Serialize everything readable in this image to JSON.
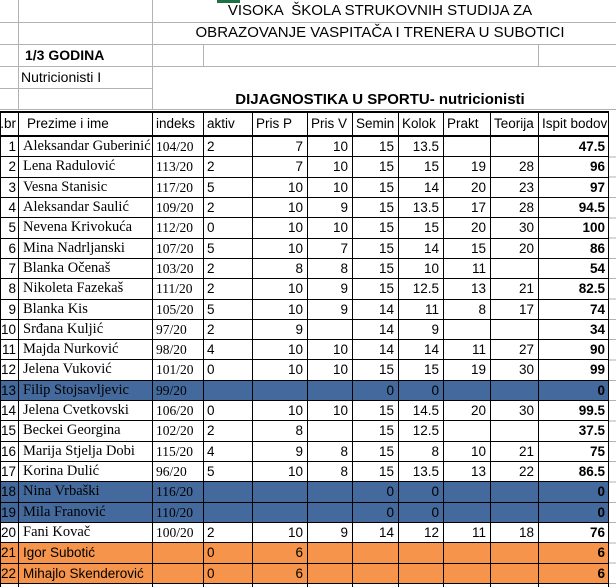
{
  "header": {
    "school_line1": "VISOKA  ŠKOLA STRUKOVNIH STUDIJA ZA",
    "school_line2": "OBRAZOVANJE VASPITAČA I TRENERA U SUBOTICI",
    "year_label": "1/3 GODINA",
    "group_label": "Nutricionisti I",
    "course_title": "DIJAGNOSTIKA U SPORTU- nutricionisti"
  },
  "table": {
    "columns": [
      "r.br",
      "Prezime i ime",
      "indeks",
      "aktiv",
      "Pris P",
      "Pris V",
      "Semin",
      "Kolok",
      "Prakt",
      "Teorija",
      "Ispit bodovi"
    ],
    "rows": [
      {
        "rbr": "1",
        "name": "Aleksandar Guberinić",
        "indeks": "104/20",
        "aktiv": "2",
        "pris_p": "7",
        "pris_v": "10",
        "semin": "15",
        "kolok": "13.5",
        "prakt": "",
        "teorija": "",
        "ispit": "47.5",
        "highlight": "none"
      },
      {
        "rbr": "2",
        "name": "Lena Radulović",
        "indeks": "113/20",
        "aktiv": "2",
        "pris_p": "7",
        "pris_v": "10",
        "semin": "15",
        "kolok": "15",
        "prakt": "19",
        "teorija": "28",
        "ispit": "96",
        "highlight": "none"
      },
      {
        "rbr": "3",
        "name": "Vesna Stanisic",
        "indeks": "117/20",
        "aktiv": "5",
        "pris_p": "10",
        "pris_v": "10",
        "semin": "15",
        "kolok": "14",
        "prakt": "20",
        "teorija": "23",
        "ispit": "97",
        "highlight": "none"
      },
      {
        "rbr": "4",
        "name": "Aleksandar Saulić",
        "indeks": "109/20",
        "aktiv": "2",
        "pris_p": "10",
        "pris_v": "9",
        "semin": "15",
        "kolok": "13.5",
        "prakt": "17",
        "teorija": "28",
        "ispit": "94.5",
        "highlight": "none"
      },
      {
        "rbr": "5",
        "name": "Nevena Krivokuća",
        "indeks": "112/20",
        "aktiv": "0",
        "pris_p": "10",
        "pris_v": "10",
        "semin": "15",
        "kolok": "15",
        "prakt": "20",
        "teorija": "30",
        "ispit": "100",
        "highlight": "none"
      },
      {
        "rbr": "6",
        "name": "Mina Nadrljanski",
        "indeks": "107/20",
        "aktiv": "5",
        "pris_p": "10",
        "pris_v": "7",
        "semin": "15",
        "kolok": "14",
        "prakt": "15",
        "teorija": "20",
        "ispit": "86",
        "highlight": "none"
      },
      {
        "rbr": "7",
        "name": "Blanka Očenaš",
        "indeks": "103/20",
        "aktiv": "2",
        "pris_p": "8",
        "pris_v": "8",
        "semin": "15",
        "kolok": "10",
        "prakt": "11",
        "teorija": "",
        "ispit": "54",
        "highlight": "none"
      },
      {
        "rbr": "8",
        "name": "Nikoleta Fazekaš",
        "indeks": "111/20",
        "aktiv": "2",
        "pris_p": "10",
        "pris_v": "9",
        "semin": "15",
        "kolok": "12.5",
        "prakt": "13",
        "teorija": "21",
        "ispit": "82.5",
        "highlight": "none"
      },
      {
        "rbr": "9",
        "name": "Blanka Kis",
        "indeks": "105/20",
        "aktiv": "5",
        "pris_p": "10",
        "pris_v": "9",
        "semin": "14",
        "kolok": "11",
        "prakt": "8",
        "teorija": "17",
        "ispit": "74",
        "highlight": "none"
      },
      {
        "rbr": "10",
        "name": "Srđana Kuljić",
        "indeks": "97/20",
        "aktiv": "2",
        "pris_p": "9",
        "pris_v": "",
        "semin": "14",
        "kolok": "9",
        "prakt": "",
        "teorija": "",
        "ispit": "34",
        "highlight": "none"
      },
      {
        "rbr": "11",
        "name": "Majda Nurković",
        "indeks": "98/20",
        "aktiv": "4",
        "pris_p": "10",
        "pris_v": "10",
        "semin": "14",
        "kolok": "14",
        "prakt": "11",
        "teorija": "27",
        "ispit": "90",
        "highlight": "none"
      },
      {
        "rbr": "12",
        "name": "Jelena Vuković",
        "indeks": "101/20",
        "aktiv": "0",
        "pris_p": "10",
        "pris_v": "10",
        "semin": "15",
        "kolok": "15",
        "prakt": "19",
        "teorija": "30",
        "ispit": "99",
        "highlight": "none"
      },
      {
        "rbr": "13",
        "name": "Filip Stojsavljevic",
        "indeks": "99/20",
        "aktiv": "",
        "pris_p": "",
        "pris_v": "",
        "semin": "0",
        "kolok": "0",
        "prakt": "",
        "teorija": "",
        "ispit": "0",
        "highlight": "blue"
      },
      {
        "rbr": "14",
        "name": "Jelena Cvetkovski",
        "indeks": "106/20",
        "aktiv": "0",
        "pris_p": "10",
        "pris_v": "10",
        "semin": "15",
        "kolok": "14.5",
        "prakt": "20",
        "teorija": "30",
        "ispit": "99.5",
        "highlight": "none"
      },
      {
        "rbr": "15",
        "name": "Beckei Georgina",
        "indeks": "102/20",
        "aktiv": "2",
        "pris_p": "8",
        "pris_v": "",
        "semin": "15",
        "kolok": "12.5",
        "prakt": "",
        "teorija": "",
        "ispit": "37.5",
        "highlight": "none"
      },
      {
        "rbr": "16",
        "name": "Marija Stjelja Dobi",
        "indeks": "115/20",
        "aktiv": "4",
        "pris_p": "9",
        "pris_v": "8",
        "semin": "15",
        "kolok": "8",
        "prakt": "10",
        "teorija": "21",
        "ispit": "75",
        "highlight": "none"
      },
      {
        "rbr": "17",
        "name": "Korina Dulić",
        "indeks": "96/20",
        "aktiv": "5",
        "pris_p": "10",
        "pris_v": "8",
        "semin": "15",
        "kolok": "13.5",
        "prakt": "13",
        "teorija": "22",
        "ispit": "86.5",
        "highlight": "none"
      },
      {
        "rbr": "18",
        "name": "Nina Vrbaški",
        "indeks": "116/20",
        "aktiv": "",
        "pris_p": "",
        "pris_v": "",
        "semin": "0",
        "kolok": "0",
        "prakt": "",
        "teorija": "",
        "ispit": "0",
        "highlight": "blue"
      },
      {
        "rbr": "19",
        "name": "Mila Franović",
        "indeks": "110/20",
        "aktiv": "",
        "pris_p": "",
        "pris_v": "",
        "semin": "0",
        "kolok": "0",
        "prakt": "",
        "teorija": "",
        "ispit": "0",
        "highlight": "blue"
      },
      {
        "rbr": "20",
        "name": "Fani Kovač",
        "indeks": "100/20",
        "aktiv": "2",
        "pris_p": "10",
        "pris_v": "9",
        "semin": "14",
        "kolok": "12",
        "prakt": "11",
        "teorija": "18",
        "ispit": "76",
        "highlight": "none"
      },
      {
        "rbr": "21",
        "name": "Igor Subotić",
        "indeks": "",
        "aktiv": "0",
        "pris_p": "6",
        "pris_v": "",
        "semin": "",
        "kolok": "",
        "prakt": "",
        "teorija": "",
        "ispit": "6",
        "highlight": "orange"
      },
      {
        "rbr": "22",
        "name": "Mihajlo Skenderović",
        "indeks": "",
        "aktiv": "0",
        "pris_p": "6",
        "pris_v": "",
        "semin": "",
        "kolok": "",
        "prakt": "",
        "teorija": "",
        "ispit": "6",
        "highlight": "orange"
      }
    ]
  },
  "colors": {
    "row_highlight_blue": "#44699C",
    "row_highlight_orange": "#F5944A",
    "selection_green": "#1E7145",
    "grid_line": "#B2B2B2",
    "table_border": "#000000"
  }
}
